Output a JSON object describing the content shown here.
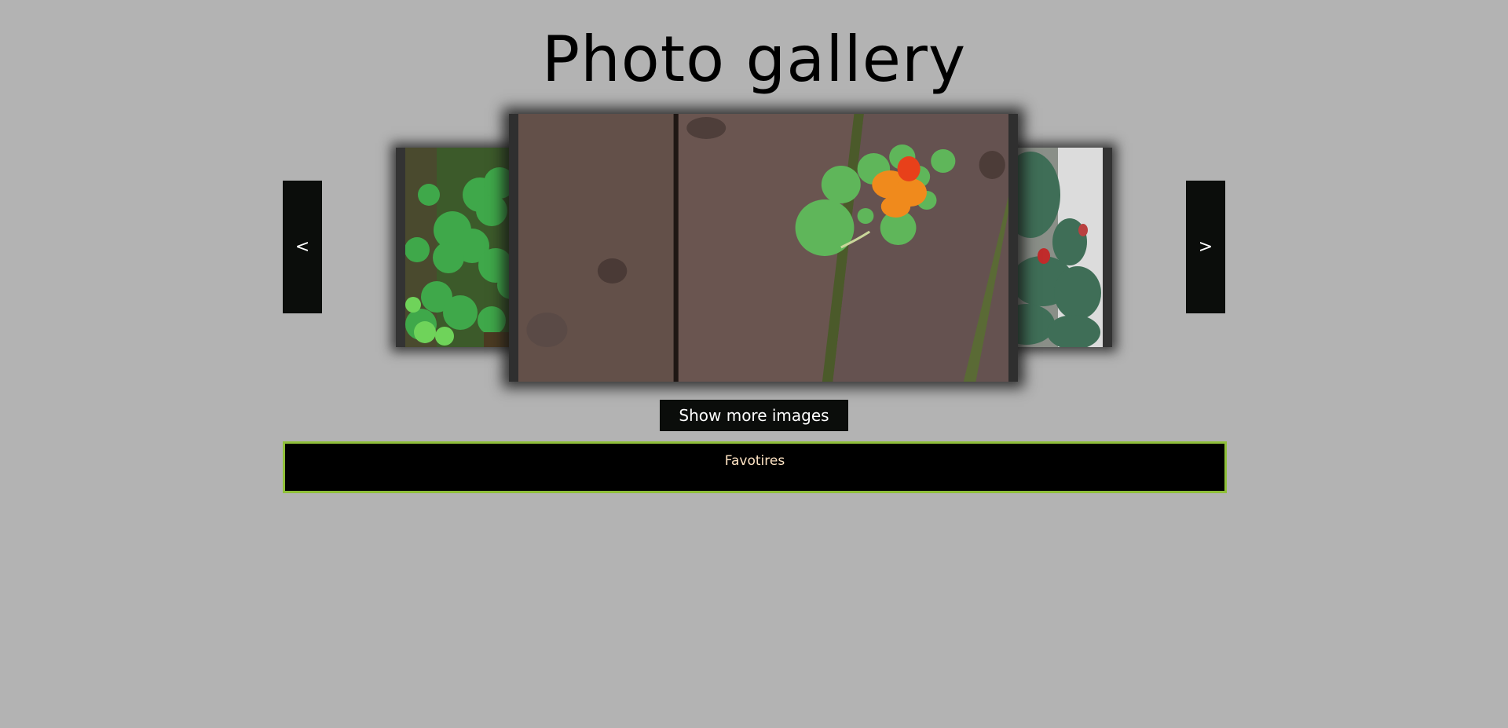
{
  "header": {
    "title": "Photo gallery"
  },
  "carousel": {
    "prev_label": "<",
    "next_label": ">",
    "photos": [
      {
        "subject": "clover-leaves"
      },
      {
        "subject": "nasturtium-on-wooden-fence"
      },
      {
        "subject": "prickly-pear-cactus"
      }
    ]
  },
  "actions": {
    "show_more_label": "Show more images"
  },
  "favorites": {
    "label": "Favotires"
  },
  "colors": {
    "background": "#b3b3b3",
    "button_bg": "#0b0d0b",
    "favorites_border": "#8fbf3a",
    "favorites_text": "#ffe4c4"
  }
}
